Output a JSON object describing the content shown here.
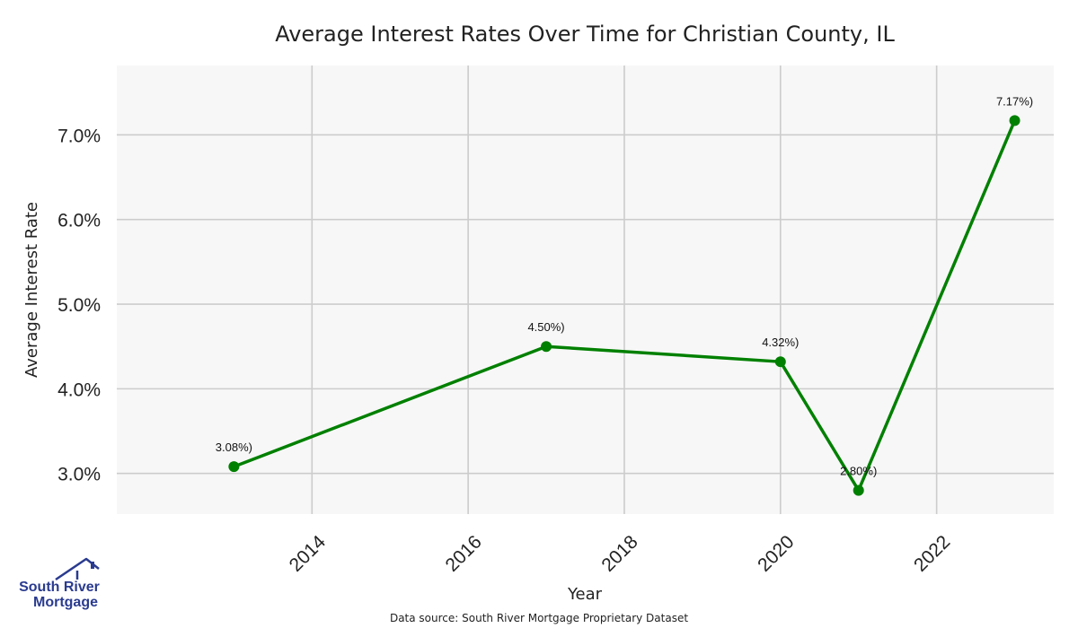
{
  "chart_data": {
    "type": "line",
    "title": "Average Interest Rates Over Time for Christian County, IL",
    "xlabel": "Year",
    "ylabel": "Average Interest Rate",
    "x": [
      2013,
      2017,
      2020,
      2021,
      2023
    ],
    "values": [
      3.08,
      4.5,
      4.32,
      2.8,
      7.17
    ],
    "data_labels": [
      "3.08%)",
      "4.50%)",
      "4.32%)",
      "2.80%)",
      "7.17%)"
    ],
    "xlim": [
      2011.5,
      2023.5
    ],
    "ylim": [
      2.52,
      7.82
    ],
    "xticks": [
      2014,
      2016,
      2018,
      2020,
      2022
    ],
    "xtick_labels": [
      "2014",
      "2016",
      "2018",
      "2020",
      "2022"
    ],
    "yticks": [
      3.0,
      4.0,
      5.0,
      6.0,
      7.0
    ],
    "ytick_labels": [
      "3.0%",
      "4.0%",
      "5.0%",
      "6.0%",
      "7.0%"
    ],
    "grid": true,
    "line_color": "#008000",
    "plot_background": "#f7f7f7",
    "grid_color": "#cccccc"
  },
  "footer": {
    "source": "Data source: South River Mortgage Proprietary Dataset"
  },
  "logo": {
    "line1": "South River",
    "line2": "Mortgage",
    "color": "#2a3b8f"
  }
}
